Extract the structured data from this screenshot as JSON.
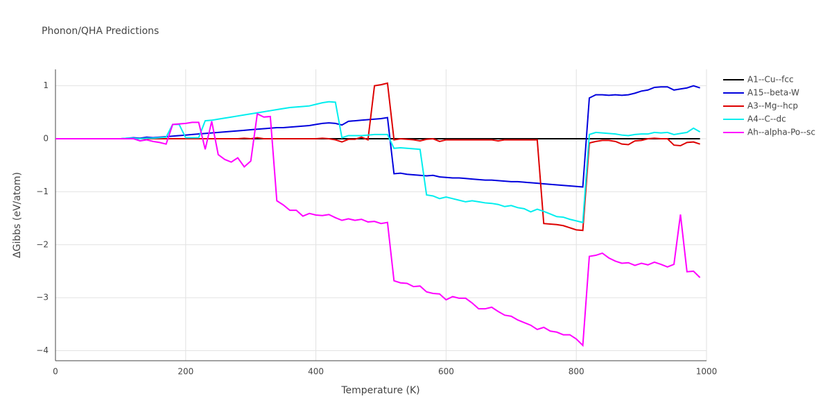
{
  "chart_data": {
    "type": "line",
    "title": "Phonon/QHA Predictions",
    "x_label": "Temperature (K)",
    "y_label": "ΔGibbs (eV/atom)",
    "xlim": [
      0,
      1000
    ],
    "ylim": [
      -4.19,
      1.31
    ],
    "xticks": [
      0,
      200,
      400,
      600,
      800,
      1000
    ],
    "yticks": [
      {
        "value": -4,
        "label": "−4"
      },
      {
        "value": -3,
        "label": "−3"
      },
      {
        "value": -2,
        "label": "−2"
      },
      {
        "value": -1,
        "label": "−1"
      },
      0,
      1
    ],
    "grid": true,
    "legend": "right",
    "x": [
      0,
      10,
      20,
      30,
      40,
      50,
      60,
      70,
      80,
      90,
      100,
      110,
      120,
      130,
      140,
      150,
      160,
      170,
      180,
      190,
      200,
      210,
      220,
      230,
      240,
      250,
      260,
      270,
      280,
      290,
      300,
      310,
      320,
      330,
      340,
      350,
      360,
      370,
      380,
      390,
      400,
      410,
      420,
      430,
      440,
      450,
      460,
      470,
      480,
      490,
      500,
      510,
      520,
      530,
      540,
      550,
      560,
      570,
      580,
      590,
      600,
      610,
      620,
      630,
      640,
      650,
      660,
      670,
      680,
      690,
      700,
      710,
      720,
      730,
      740,
      750,
      760,
      770,
      780,
      790,
      800,
      810,
      820,
      830,
      840,
      850,
      860,
      870,
      880,
      890,
      900,
      910,
      920,
      930,
      940,
      950,
      960,
      970,
      980,
      990
    ],
    "series": [
      {
        "name": "A1--Cu--fcc",
        "color": "#000000",
        "values": [
          0,
          0,
          0,
          0,
          0,
          0,
          0,
          0,
          0,
          0,
          0,
          0,
          0,
          0,
          0,
          0,
          0,
          0,
          0,
          0,
          0,
          0,
          0,
          0,
          0,
          0,
          0,
          0,
          0,
          0,
          0,
          0,
          0,
          0,
          0,
          0,
          0,
          0,
          0,
          0,
          0,
          0,
          0,
          0,
          0,
          0,
          0,
          0,
          0,
          0,
          0,
          0,
          0,
          0,
          0,
          0,
          0,
          0,
          0,
          0,
          0,
          0,
          0,
          0,
          0,
          0,
          0,
          0,
          0,
          0,
          0,
          0,
          0,
          0,
          0,
          0,
          0,
          0,
          0,
          0,
          0,
          0,
          0,
          0,
          0,
          0,
          0,
          0,
          0,
          0,
          0,
          0,
          0,
          0,
          0,
          0,
          0,
          0,
          0,
          0
        ]
      },
      {
        "name": "A15--beta-W",
        "color": "#0000dd",
        "values": [
          0,
          0,
          0,
          0,
          0,
          0,
          0,
          0,
          0,
          0,
          0,
          0.01,
          0.02,
          0.01,
          0.03,
          0.02,
          0.03,
          0.04,
          0.05,
          0.06,
          0.07,
          0.08,
          0.09,
          0.1,
          0.11,
          0.12,
          0.13,
          0.14,
          0.15,
          0.16,
          0.17,
          0.18,
          0.19,
          0.2,
          0.21,
          0.21,
          0.22,
          0.23,
          0.24,
          0.25,
          0.27,
          0.29,
          0.3,
          0.29,
          0.26,
          0.33,
          0.34,
          0.35,
          0.36,
          0.37,
          0.38,
          0.4,
          -0.66,
          -0.65,
          -0.67,
          -0.68,
          -0.69,
          -0.7,
          -0.69,
          -0.72,
          -0.73,
          -0.74,
          -0.74,
          -0.75,
          -0.76,
          -0.77,
          -0.78,
          -0.78,
          -0.79,
          -0.8,
          -0.81,
          -0.81,
          -0.82,
          -0.83,
          -0.84,
          -0.85,
          -0.86,
          -0.87,
          -0.88,
          -0.89,
          -0.9,
          -0.91,
          0.77,
          0.83,
          0.83,
          0.82,
          0.83,
          0.82,
          0.83,
          0.86,
          0.9,
          0.92,
          0.97,
          0.98,
          0.98,
          0.92,
          0.94,
          0.96,
          1.0,
          0.96
        ]
      },
      {
        "name": "A3--Mg--hcp",
        "color": "#dd0000",
        "values": [
          0,
          0,
          0,
          0,
          0,
          0,
          0,
          0,
          0,
          0,
          0,
          0,
          0,
          0,
          0,
          0,
          0,
          0,
          0,
          0,
          0,
          0,
          0,
          0,
          0,
          0,
          0,
          0,
          0,
          0.01,
          0,
          0.02,
          0,
          0,
          0,
          0,
          0,
          0,
          0,
          0,
          0,
          0.01,
          0,
          -0.02,
          -0.06,
          -0.01,
          -0.01,
          0.03,
          -0.02,
          1.0,
          1.02,
          1.05,
          -0.02,
          0,
          -0.01,
          -0.02,
          -0.04,
          -0.01,
          0,
          -0.05,
          -0.02,
          -0.02,
          -0.02,
          -0.02,
          -0.02,
          -0.02,
          -0.02,
          -0.02,
          -0.04,
          -0.02,
          -0.02,
          -0.02,
          -0.02,
          -0.02,
          -0.02,
          -1.6,
          -1.61,
          -1.62,
          -1.64,
          -1.68,
          -1.72,
          -1.73,
          -0.08,
          -0.05,
          -0.03,
          -0.03,
          -0.05,
          -0.1,
          -0.11,
          -0.04,
          -0.03,
          0,
          0.01,
          0,
          0,
          -0.12,
          -0.13,
          -0.07,
          -0.06,
          -0.1
        ]
      },
      {
        "name": "A4--C--dc",
        "color": "#00eeee",
        "values": [
          0,
          0,
          0,
          0,
          0,
          0,
          0,
          0,
          0,
          0,
          0,
          0.01,
          0.01,
          0,
          0.01,
          0.01,
          0.02,
          0.03,
          0.27,
          0.27,
          0.02,
          0.02,
          0.02,
          0.34,
          0.35,
          0.37,
          0.39,
          0.41,
          0.43,
          0.45,
          0.47,
          0.49,
          0.51,
          0.53,
          0.55,
          0.57,
          0.59,
          0.6,
          0.61,
          0.62,
          0.65,
          0.68,
          0.7,
          0.69,
          0.02,
          0.06,
          0.06,
          0.06,
          0.07,
          0.08,
          0.08,
          0.08,
          -0.18,
          -0.17,
          -0.18,
          -0.19,
          -0.2,
          -1.06,
          -1.08,
          -1.13,
          -1.1,
          -1.13,
          -1.16,
          -1.19,
          -1.17,
          -1.19,
          -1.21,
          -1.22,
          -1.24,
          -1.28,
          -1.26,
          -1.3,
          -1.32,
          -1.38,
          -1.33,
          -1.37,
          -1.42,
          -1.47,
          -1.48,
          -1.52,
          -1.55,
          -1.58,
          0.08,
          0.12,
          0.11,
          0.1,
          0.09,
          0.07,
          0.06,
          0.08,
          0.09,
          0.09,
          0.12,
          0.11,
          0.12,
          0.08,
          0.1,
          0.12,
          0.2,
          0.13
        ]
      },
      {
        "name": "Ah--alpha-Po--sc",
        "color": "#ff00ff",
        "values": [
          0,
          0,
          0,
          0,
          0,
          0,
          0,
          0,
          0,
          0,
          0,
          0,
          0,
          -0.04,
          -0.02,
          -0.05,
          -0.07,
          -0.1,
          0.27,
          0.28,
          0.29,
          0.31,
          0.31,
          -0.2,
          0.33,
          -0.3,
          -0.39,
          -0.44,
          -0.36,
          -0.53,
          -0.42,
          0.47,
          0.41,
          0.42,
          -1.17,
          -1.25,
          -1.35,
          -1.35,
          -1.46,
          -1.41,
          -1.44,
          -1.45,
          -1.43,
          -1.49,
          -1.54,
          -1.51,
          -1.54,
          -1.52,
          -1.57,
          -1.56,
          -1.6,
          -1.58,
          -2.68,
          -2.72,
          -2.73,
          -2.79,
          -2.78,
          -2.89,
          -2.92,
          -2.93,
          -3.04,
          -2.98,
          -3.01,
          -3.01,
          -3.1,
          -3.21,
          -3.21,
          -3.18,
          -3.26,
          -3.33,
          -3.35,
          -3.42,
          -3.47,
          -3.52,
          -3.6,
          -3.56,
          -3.63,
          -3.65,
          -3.7,
          -3.7,
          -3.78,
          -3.9,
          -2.22,
          -2.2,
          -2.16,
          -2.25,
          -2.31,
          -2.35,
          -2.34,
          -2.39,
          -2.35,
          -2.38,
          -2.33,
          -2.37,
          -2.42,
          -2.37,
          -1.43,
          -2.51,
          -2.5,
          -2.62
        ]
      }
    ]
  }
}
